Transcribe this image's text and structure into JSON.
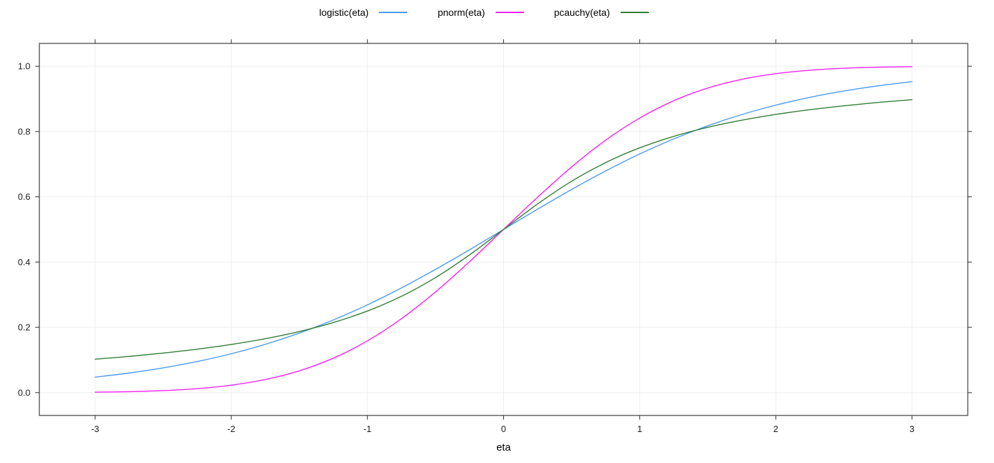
{
  "chart_data": {
    "type": "line",
    "title": "",
    "xlabel": "eta",
    "ylabel": "",
    "xlim": [
      -3.41,
      3.41
    ],
    "ylim": [
      -0.07,
      1.07
    ],
    "grid": true,
    "legend_position": "top",
    "x_ticks": [
      -3,
      -2,
      -1,
      0,
      1,
      2,
      3
    ],
    "x_tick_labels": [
      "-3",
      "-2",
      "-1",
      "0",
      "1",
      "2",
      "3"
    ],
    "y_ticks": [
      0.0,
      0.2,
      0.4,
      0.6,
      0.8,
      1.0
    ],
    "y_tick_labels": [
      "0.0",
      "0.2",
      "0.4",
      "0.6",
      "0.8",
      "1.0"
    ],
    "x": [
      -3,
      -2.75,
      -2.5,
      -2.25,
      -2,
      -1.75,
      -1.5,
      -1.25,
      -1,
      -0.75,
      -0.5,
      -0.25,
      0,
      0.25,
      0.5,
      0.75,
      1,
      1.25,
      1.5,
      1.75,
      2,
      2.25,
      2.5,
      2.75,
      3
    ],
    "series": [
      {
        "name": "logistic(eta)",
        "color": "#4899F0",
        "values": [
          0.0474,
          0.0601,
          0.0759,
          0.0953,
          0.1192,
          0.148,
          0.1824,
          0.2227,
          0.2689,
          0.3208,
          0.3775,
          0.4378,
          0.5,
          0.5622,
          0.6225,
          0.6792,
          0.7311,
          0.7773,
          0.8176,
          0.852,
          0.8808,
          0.9047,
          0.9241,
          0.9399,
          0.9526
        ]
      },
      {
        "name": "pnorm(eta)",
        "color": "#F320F3",
        "values": [
          0.0013,
          0.003,
          0.0062,
          0.0122,
          0.0228,
          0.0401,
          0.0668,
          0.1056,
          0.1587,
          0.2266,
          0.3085,
          0.4013,
          0.5,
          0.5987,
          0.6915,
          0.7734,
          0.8413,
          0.8944,
          0.9332,
          0.9599,
          0.9772,
          0.9878,
          0.9938,
          0.997,
          0.9987
        ]
      },
      {
        "name": "pcauchy(eta)",
        "color": "#2E7D32",
        "values": [
          0.1024,
          0.111,
          0.1211,
          0.1331,
          0.1476,
          0.1652,
          0.1872,
          0.2148,
          0.25,
          0.2952,
          0.3524,
          0.422,
          0.5,
          0.578,
          0.6476,
          0.7048,
          0.75,
          0.7852,
          0.8128,
          0.8347,
          0.8524,
          0.8669,
          0.8789,
          0.889,
          0.8976
        ]
      }
    ],
    "style": {
      "grid_color": "#ededed",
      "axis_color": "#3b3b3b",
      "tick_label_color": "#1a1a1a",
      "background": "#ffffff"
    }
  }
}
